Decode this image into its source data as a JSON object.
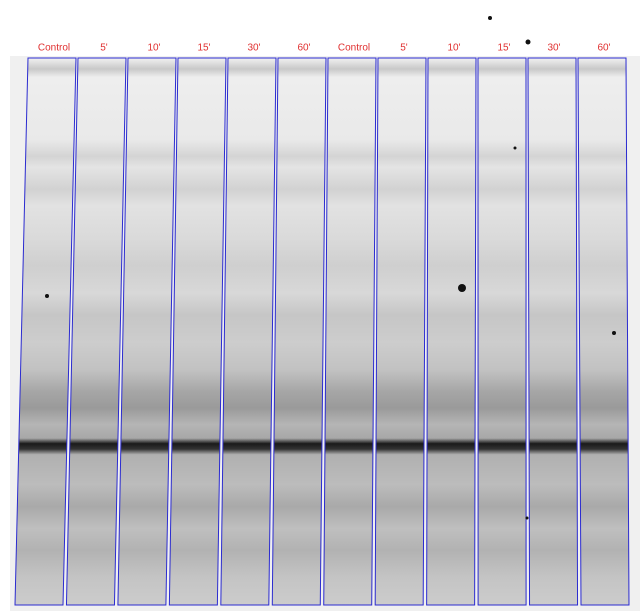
{
  "lanes": [
    "Control",
    "5'",
    "10'",
    "15'",
    "30'",
    "60'",
    "Control",
    "5'",
    "10'",
    "15'",
    "30'",
    "60'"
  ]
}
